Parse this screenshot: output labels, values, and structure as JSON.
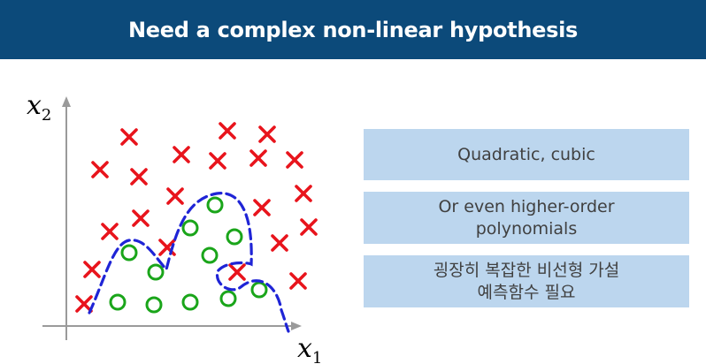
{
  "header": {
    "title": "Need a complex non-linear hypothesis"
  },
  "plot": {
    "x_axis_label": "x",
    "x_axis_subscript": "1",
    "y_axis_label": "x",
    "y_axis_subscript": "2",
    "cross_color": "#e8141c",
    "circle_color": "#1aa51a",
    "boundary_color": "#1f24d6"
  },
  "notes": {
    "box1": {
      "line1": "Quadratic, cubic"
    },
    "box2": {
      "line1": "Or even higher-order",
      "line2": "polynomials"
    },
    "box3": {
      "line1": "굉장히 복잡한 비선형 가설",
      "line2": "예측함수 필요"
    }
  }
}
